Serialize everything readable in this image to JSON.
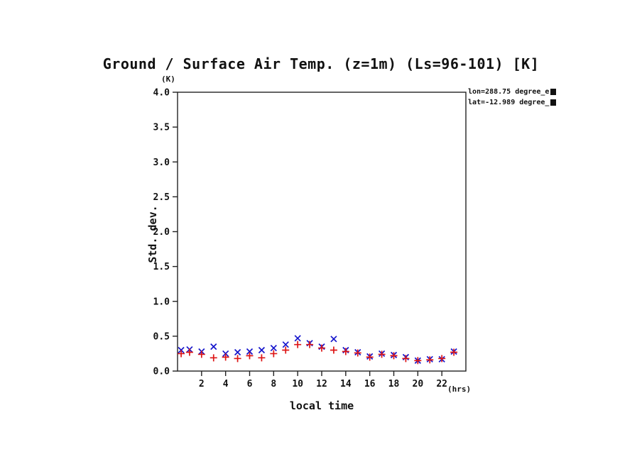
{
  "title": "Ground / Surface Air Temp. (z=1m) (Ls=96-101) [K]",
  "annotations": {
    "line1": "lon=288.75 degree_e",
    "line2": "lat=-12.989 degree_"
  },
  "axes": {
    "y_unit": "(K)",
    "x_unit": "(hrs)",
    "y_label": "Std. dev.",
    "x_label": "local time"
  },
  "colors": {
    "frame": "#222222",
    "blue_series": "#1414cc",
    "red_series": "#dd1515"
  },
  "chart_data": {
    "type": "scatter",
    "title": "Ground / Surface Air Temp. (z=1m) (Ls=96-101) [K]",
    "xlabel": "local time",
    "ylabel": "Std. dev.",
    "x_unit": "(hrs)",
    "y_unit": "(K)",
    "xlim": [
      0,
      24
    ],
    "ylim": [
      0.0,
      4.0
    ],
    "x_ticks": [
      2,
      4,
      6,
      8,
      10,
      12,
      14,
      16,
      18,
      20,
      22
    ],
    "x_tick_labels": [
      "2",
      "4",
      "6",
      "8",
      "10",
      "12",
      "14",
      "16",
      "18",
      "20",
      "22"
    ],
    "y_ticks": [
      0.0,
      0.5,
      1.0,
      1.5,
      2.0,
      2.5,
      3.0,
      3.5,
      4.0
    ],
    "y_tick_labels": [
      "0.0",
      "0.5",
      "1.0",
      "1.5",
      "2.0",
      "2.5",
      "3.0",
      "3.5",
      "4.0"
    ],
    "grid": false,
    "legend": "none",
    "x": [
      0.3,
      1,
      2,
      3,
      4,
      5,
      6,
      7,
      8,
      9,
      10,
      11,
      12,
      13,
      14,
      15,
      16,
      17,
      18,
      19,
      20,
      21,
      22,
      23
    ],
    "series": [
      {
        "name": "blue_x_series",
        "marker": "x",
        "color": "#1414cc",
        "values": [
          0.3,
          0.31,
          0.28,
          0.35,
          0.25,
          0.27,
          0.28,
          0.3,
          0.33,
          0.38,
          0.47,
          0.4,
          0.35,
          0.46,
          0.3,
          0.27,
          0.21,
          0.25,
          0.23,
          0.2,
          0.15,
          0.17,
          0.17,
          0.28
        ]
      },
      {
        "name": "red_plus_series",
        "marker": "+",
        "color": "#dd1515",
        "values": [
          0.25,
          0.27,
          0.24,
          0.19,
          0.2,
          0.18,
          0.22,
          0.19,
          0.25,
          0.3,
          0.38,
          0.38,
          0.33,
          0.3,
          0.28,
          0.26,
          0.2,
          0.24,
          0.22,
          0.18,
          0.15,
          0.16,
          0.18,
          0.27
        ]
      }
    ]
  }
}
